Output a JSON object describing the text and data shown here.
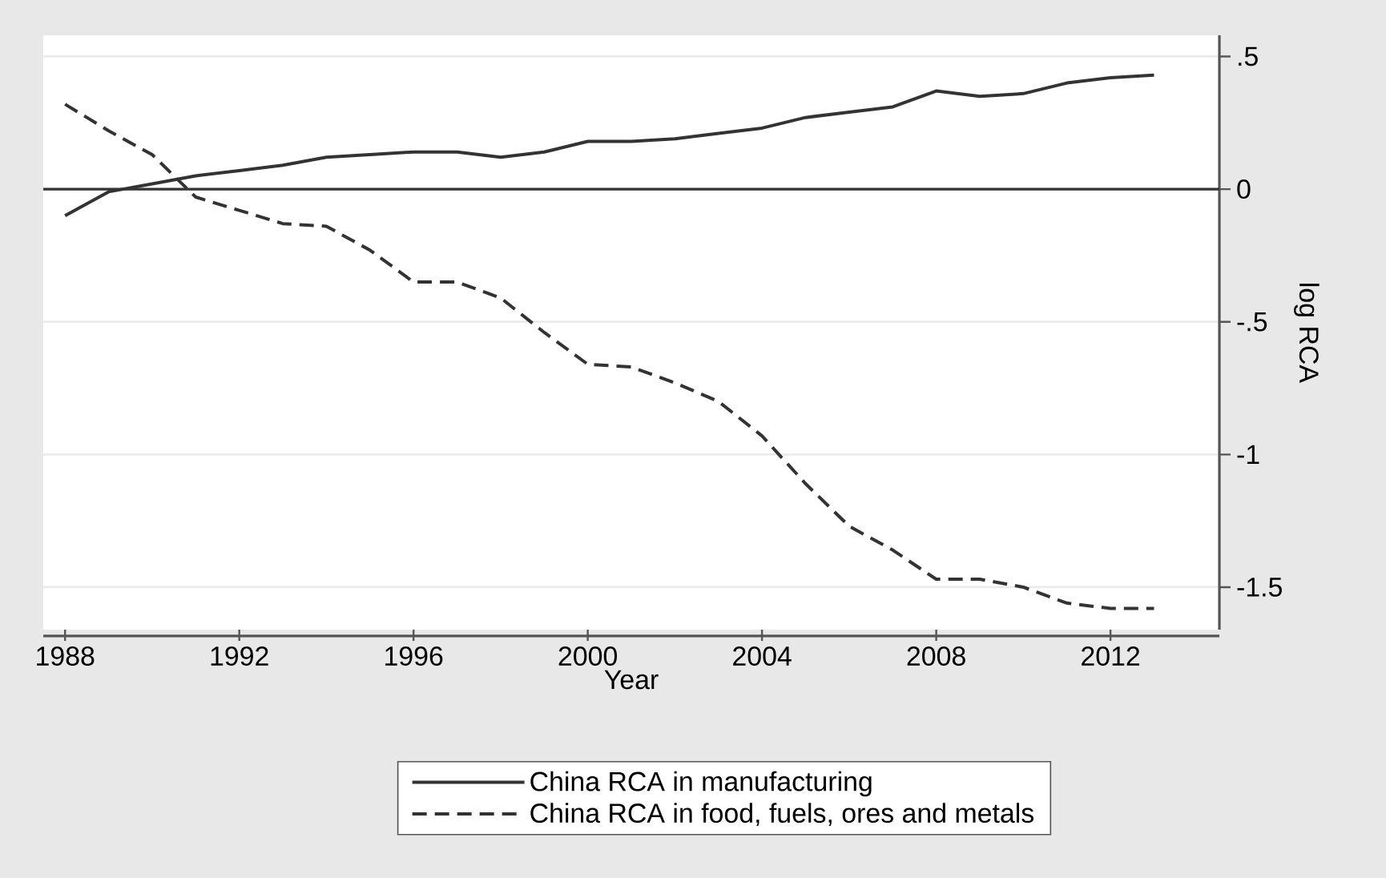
{
  "chart_data": {
    "type": "line",
    "xlabel": "Year",
    "ylabel": "log RCA",
    "x": [
      1988,
      1989,
      1990,
      1991,
      1992,
      1993,
      1994,
      1995,
      1996,
      1997,
      1998,
      1999,
      2000,
      2001,
      2002,
      2003,
      2004,
      2005,
      2006,
      2007,
      2008,
      2009,
      2010,
      2011,
      2012,
      2013
    ],
    "series": [
      {
        "name": "China RCA in manufacturing",
        "color": "#333333",
        "line_style": "solid",
        "values": [
          -0.1,
          -0.01,
          0.02,
          0.05,
          0.07,
          0.09,
          0.12,
          0.13,
          0.14,
          0.14,
          0.12,
          0.14,
          0.18,
          0.18,
          0.19,
          0.21,
          0.23,
          0.27,
          0.29,
          0.31,
          0.37,
          0.35,
          0.36,
          0.4,
          0.42,
          0.43
        ]
      },
      {
        "name": "China RCA in food, fuels, ores and metals",
        "color": "#333333",
        "line_style": "dashed",
        "values": [
          0.32,
          0.22,
          0.13,
          -0.03,
          -0.08,
          -0.13,
          -0.14,
          -0.23,
          -0.35,
          -0.35,
          -0.41,
          -0.54,
          -0.66,
          -0.67,
          -0.73,
          -0.8,
          -0.93,
          -1.11,
          -1.27,
          -1.36,
          -1.47,
          -1.47,
          -1.5,
          -1.56,
          -1.58,
          -1.58
        ]
      }
    ],
    "xlim": [
      1987.5,
      2014.5
    ],
    "ylim": [
      -1.66,
      0.58
    ],
    "xticks": [
      1988,
      1992,
      1996,
      2000,
      2004,
      2008,
      2012
    ],
    "yticks": [
      {
        "value": 0.5,
        "label": ".5"
      },
      0,
      {
        "value": -0.5,
        "label": "-.5"
      },
      -1,
      -1.5
    ],
    "ref_lines": [
      {
        "axis": "y",
        "value": 0,
        "color": "#333333"
      }
    ],
    "grid": "y",
    "legend": "bottom",
    "marker": "none"
  }
}
